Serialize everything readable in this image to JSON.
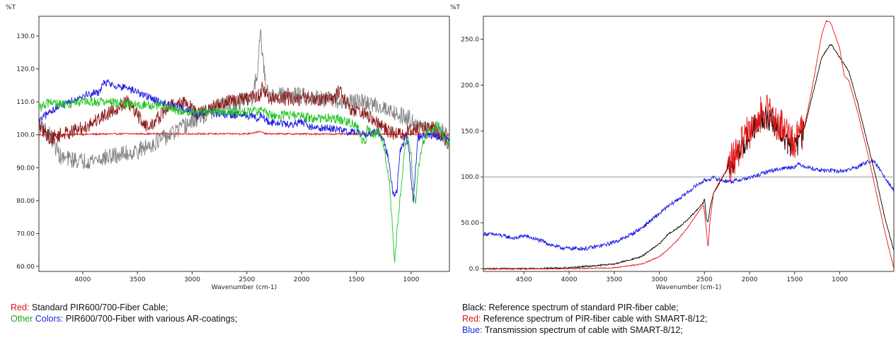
{
  "chart_data": [
    {
      "type": "line",
      "ytitle": "%T",
      "xlabel": "Wavenumber (cm-1)",
      "xlim": [
        4400,
        650
      ],
      "ylim": [
        58.5,
        136
      ],
      "y_ticks": [
        "60.00",
        "70.00",
        "80.00",
        "90.00",
        "100.0",
        "110.0",
        "120.0",
        "130.0"
      ],
      "x_ticks": [
        "4000",
        "3500",
        "3000",
        "2500",
        "2000",
        "1500",
        "1000"
      ],
      "grid": false,
      "series": [
        {
          "color": "#e81414",
          "noise": 0.25,
          "x": [
            4400,
            3600,
            2500,
            2380,
            2330,
            1500,
            1000,
            650
          ],
          "values": [
            100,
            100.3,
            100.3,
            101,
            100.3,
            100.2,
            100.2,
            100
          ]
        },
        {
          "color": "#808080",
          "noise": 2.6,
          "x": [
            4400,
            4300,
            4200,
            4000,
            3800,
            3500,
            3200,
            3000,
            2700,
            2450,
            2400,
            2380,
            2360,
            2330,
            2300,
            2200,
            2000,
            1800,
            1700,
            1600,
            1500,
            1300,
            1100,
            1000,
            900,
            800,
            700,
            650
          ],
          "values": [
            103,
            100,
            93,
            92,
            93,
            95,
            100,
            104,
            109,
            111,
            120,
            133,
            125,
            115,
            112,
            112,
            112,
            111,
            110,
            110,
            110,
            109,
            106,
            105,
            102,
            101,
            101,
            100
          ]
        },
        {
          "color": "#8b1a1a",
          "noise": 2.2,
          "x": [
            4400,
            4300,
            4200,
            4000,
            3800,
            3700,
            3600,
            3400,
            3200,
            3050,
            3000,
            2950,
            2900,
            2700,
            2500,
            2380,
            2360,
            2340,
            2300,
            2100,
            1900,
            1700,
            1650,
            1600,
            1550,
            1500,
            1400,
            1300,
            1200,
            1100,
            1000,
            900,
            800,
            700,
            650
          ],
          "values": [
            103,
            99,
            100,
            102,
            106,
            108,
            110,
            102,
            109,
            110,
            108,
            106,
            107,
            110,
            111,
            112,
            115,
            113,
            111,
            111,
            111,
            111,
            114,
            110,
            108,
            107,
            106,
            103,
            101,
            100,
            101,
            102,
            102,
            99,
            97
          ]
        },
        {
          "color": "#1a1ae6",
          "noise": 1.2,
          "x": [
            4400,
            4300,
            4200,
            4000,
            3850,
            3800,
            3700,
            3500,
            3300,
            3100,
            3000,
            2950,
            2900,
            2700,
            2500,
            2400,
            2380,
            2340,
            2300,
            2100,
            2000,
            1900,
            1700,
            1600,
            1500,
            1400,
            1300,
            1250,
            1200,
            1170,
            1150,
            1130,
            1100,
            1050,
            1020,
            1000,
            980,
            960,
            940,
            900,
            800,
            700,
            650
          ],
          "values": [
            104,
            107,
            109,
            112,
            113,
            116,
            115,
            113,
            110,
            108,
            107,
            106,
            107,
            106,
            106,
            105,
            106,
            105,
            104,
            103,
            104,
            102,
            102,
            101,
            101,
            100,
            101,
            98,
            92,
            83,
            81,
            83,
            95,
            99,
            96,
            87,
            80,
            89,
            99,
            100,
            100,
            99,
            98
          ]
        },
        {
          "color": "#22c422",
          "noise": 1.5,
          "x": [
            4400,
            4300,
            4200,
            4000,
            3800,
            3500,
            3300,
            3100,
            3000,
            2950,
            2900,
            2600,
            2400,
            2380,
            2340,
            2300,
            2100,
            1900,
            1700,
            1500,
            1450,
            1420,
            1400,
            1350,
            1300,
            1250,
            1200,
            1170,
            1150,
            1130,
            1100,
            1080,
            1050,
            1020,
            1000,
            980,
            960,
            940,
            900,
            850,
            800,
            750,
            700,
            650
          ],
          "values": [
            108,
            110,
            109,
            110,
            110,
            109,
            109,
            107,
            107,
            106,
            107,
            107,
            107,
            109,
            107,
            106,
            106,
            105,
            105,
            103,
            99,
            97,
            102,
            100,
            101,
            97,
            86,
            72,
            62,
            70,
            81,
            88,
            98,
            98,
            94,
            84,
            78,
            88,
            97,
            101,
            102,
            103,
            99,
            97
          ]
        }
      ]
    },
    {
      "type": "line",
      "ytitle": "%T",
      "xlabel": "Wavenumber (cm-1)",
      "xlim": [
        4950,
        400
      ],
      "ylim": [
        -3,
        275
      ],
      "y_ticks": [
        "0.0",
        "50.00",
        "100.0",
        "150.0",
        "200.0",
        "250.0"
      ],
      "x_ticks": [
        "4500",
        "4000",
        "3500",
        "3000",
        "2500",
        "2000",
        "1500",
        "1000"
      ],
      "reference_line": 100,
      "grid": false,
      "series": [
        {
          "color": "#1a1ae6",
          "noise": 2.2,
          "x": [
            4950,
            4800,
            4700,
            4600,
            4500,
            4400,
            4300,
            4200,
            4100,
            4000,
            3900,
            3800,
            3700,
            3600,
            3500,
            3400,
            3300,
            3200,
            3100,
            3000,
            2900,
            2800,
            2700,
            2600,
            2500,
            2400,
            2300,
            2200,
            2100,
            2000,
            1900,
            1800,
            1700,
            1600,
            1500,
            1450,
            1400,
            1300,
            1200,
            1100,
            1000,
            900,
            800,
            700,
            650,
            600,
            500,
            400
          ],
          "values": [
            38,
            37,
            35,
            33,
            36,
            33,
            30,
            26,
            23,
            22,
            22,
            22,
            24,
            26,
            29,
            33,
            38,
            44,
            52,
            60,
            68,
            75,
            82,
            90,
            96,
            99,
            96,
            95,
            97,
            99,
            102,
            106,
            108,
            110,
            111,
            114,
            112,
            109,
            107,
            107,
            106,
            108,
            111,
            116,
            118,
            114,
            100,
            85
          ]
        },
        {
          "color": "#000000",
          "noise": 0.8,
          "fnoise": 14,
          "fx": [
            1400,
            2250
          ],
          "x": [
            4950,
            4500,
            4000,
            3500,
            3200,
            3000,
            2900,
            2800,
            2700,
            2600,
            2510,
            2500,
            2480,
            2460,
            2440,
            2400,
            2350,
            2300,
            2200,
            2100,
            2000,
            1900,
            1800,
            1700,
            1600,
            1500,
            1400,
            1300,
            1200,
            1100,
            1000,
            900,
            800,
            700,
            600,
            500,
            400
          ],
          "values": [
            0,
            0,
            1,
            5,
            13,
            27,
            38,
            44,
            52,
            62,
            72,
            78,
            55,
            50,
            65,
            82,
            90,
            100,
            115,
            130,
            147,
            162,
            165,
            155,
            140,
            130,
            150,
            190,
            230,
            245,
            230,
            215,
            180,
            140,
            100,
            55,
            20
          ]
        },
        {
          "color": "#e81414",
          "noise": 0.6,
          "fnoise": 20,
          "fx": [
            1400,
            2250
          ],
          "x": [
            4950,
            4500,
            4000,
            3500,
            3200,
            3000,
            2900,
            2800,
            2700,
            2600,
            2510,
            2480,
            2460,
            2440,
            2400,
            2350,
            2300,
            2200,
            2100,
            2000,
            1900,
            1800,
            1700,
            1600,
            1500,
            1400,
            1300,
            1200,
            1150,
            1100,
            1000,
            950,
            900,
            800,
            700,
            600,
            500,
            400
          ],
          "values": [
            0,
            0,
            0,
            1,
            5,
            13,
            21,
            31,
            43,
            57,
            70,
            45,
            22,
            50,
            82,
            92,
            100,
            117,
            133,
            150,
            167,
            170,
            160,
            150,
            140,
            150,
            200,
            255,
            270,
            268,
            240,
            210,
            205,
            170,
            130,
            85,
            40,
            0
          ]
        }
      ]
    }
  ],
  "captions": {
    "left_line1_prefix": "Red:",
    "left_line1_text": " Standard PIR600/700-Fiber Cable;",
    "left_line2_other": "Other",
    "left_line2_colors": " Colors:",
    "left_line2_text": "  PIR600/700-Fiber with various AR-coatings;",
    "right_line1": "Black: Reference spectrum of  standard PIR-fiber cable;",
    "right_line2_prefix": "Red:",
    "right_line2_text": " Reference spectrum of  PIR-fiber cable with SMART-8/12;",
    "right_line3_prefix": "Blue:",
    "right_line3_text": " Transmission spectrum of cable with SMART-8/12;"
  }
}
